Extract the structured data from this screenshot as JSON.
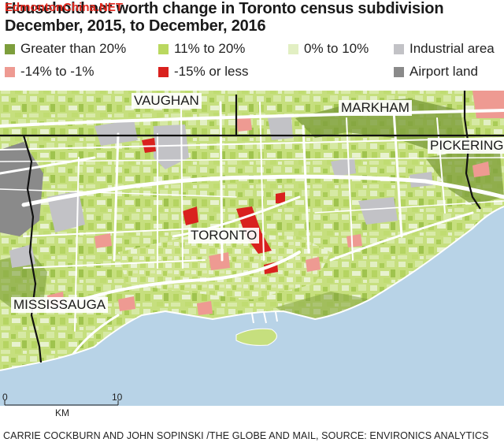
{
  "title": "Household net worth change in Toronto census subdivision",
  "subtitle": "December, 2015, to December, 2016",
  "watermark": "EdmontonChina.NET",
  "legend": [
    {
      "label": "Greater than 20%",
      "color": "#7d9e3c"
    },
    {
      "label": "11% to 20%",
      "color": "#bad860"
    },
    {
      "label": "0% to 10%",
      "color": "#e2efc3"
    },
    {
      "label": "Industrial area",
      "color": "#c2c2c6"
    },
    {
      "label": "-14% to -1%",
      "color": "#ee9a92"
    },
    {
      "label": "-15% or less",
      "color": "#d9211e"
    },
    {
      "label": "Airport land",
      "color": "#8a8a8a"
    }
  ],
  "cities": {
    "vaughan": "VAUGHAN",
    "markham": "MARKHAM",
    "pickering": "PICKERING",
    "toronto": "TORONTO",
    "mississauga": "MISSISSAUGA"
  },
  "scale": {
    "start": "0",
    "end": "10",
    "units": "KM"
  },
  "credit": "CARRIE COCKBURN AND JOHN SOPINSKI /THE GLOBE AND MAIL,  SOURCE: ENVIRONICS ANALYTICS",
  "colors": {
    "lake": "#b8d3e7",
    "land_base": "#c9e084",
    "roads": "#ffffff",
    "borders": "#111111"
  }
}
